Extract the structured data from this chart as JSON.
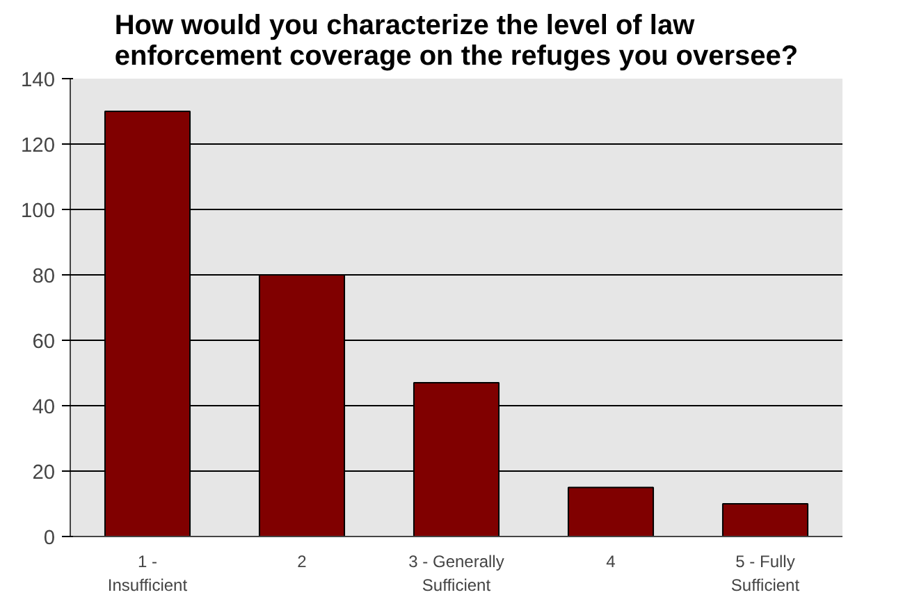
{
  "chart_data": {
    "type": "bar",
    "title": "How would you characterize the level of law\nenforcement coverage on the refuges you oversee?",
    "categories": [
      "1 -\nInsufficient",
      "2",
      "3 - Generally\nSufficient",
      "4",
      "5 - Fully\nSufficient"
    ],
    "values": [
      130,
      80,
      47,
      15,
      10
    ],
    "color": "#800000",
    "ylim": [
      0,
      140
    ],
    "yticks": [
      0,
      20,
      40,
      60,
      80,
      100,
      120,
      140
    ],
    "grid": "y"
  }
}
